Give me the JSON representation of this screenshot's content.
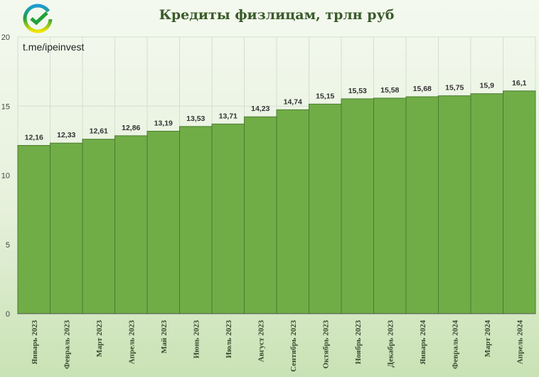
{
  "chart_data": {
    "type": "bar",
    "title": "Кредиты физлицам, трлн руб",
    "categories": [
      "Январь 2023",
      "Февраль 2023",
      "Март 2023",
      "Апрель 2023",
      "Май 2023",
      "Июнь 2023",
      "Июль 2023",
      "Август 2023",
      "Сентябрь 2023",
      "Октябрь 2023",
      "Ноябрь 2023",
      "Декабрь 2023",
      "Январь 2024",
      "Февраль 2024",
      "Март 2024",
      "Апрель 2024"
    ],
    "values": [
      12.16,
      12.33,
      12.61,
      12.86,
      13.19,
      13.53,
      13.71,
      14.23,
      14.74,
      15.15,
      15.53,
      15.58,
      15.68,
      15.75,
      15.9,
      16.1
    ],
    "data_labels": [
      "12,16",
      "12,33",
      "12,61",
      "12,86",
      "13,19",
      "13,53",
      "13,71",
      "14,23",
      "14,74",
      "15,15",
      "15,53",
      "15,58",
      "15,68",
      "15,75",
      "15,9",
      "16,1"
    ],
    "ylim": [
      0,
      20
    ],
    "yticks": [
      0,
      5,
      10,
      15,
      20
    ],
    "xlabel": "",
    "ylabel": "",
    "grid": true,
    "bar_color": "#70ad47",
    "bar_border_color": "#4a7a2c"
  },
  "watermark": "t.me/ipeinvest",
  "logo": {
    "icon": "sber-checkmark-logo",
    "colors": [
      "#21a038",
      "#1e9bd7",
      "#f2e500"
    ]
  }
}
